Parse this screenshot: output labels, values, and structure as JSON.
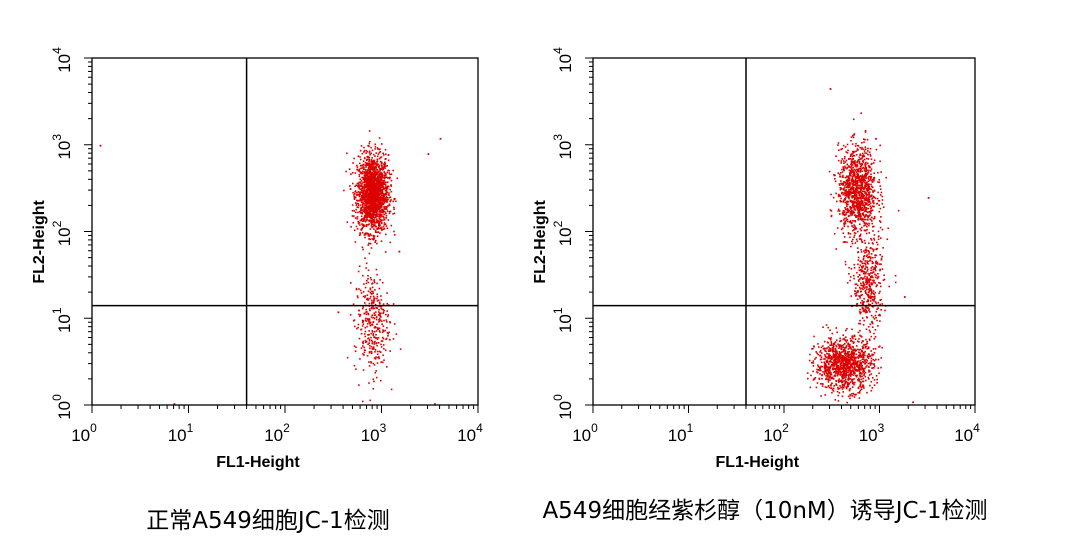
{
  "chart_data": [
    {
      "type": "scatter",
      "title": "正常A549细胞JC-1检测",
      "xlabel": "FL1-Height",
      "ylabel": "FL2-Height",
      "x_scale": "log",
      "y_scale": "log",
      "xlim": [
        1,
        10000
      ],
      "ylim": [
        1,
        10000
      ],
      "x_ticks": [
        {
          "base": "10",
          "exp": "0"
        },
        {
          "base": "10",
          "exp": "1"
        },
        {
          "base": "10",
          "exp": "2"
        },
        {
          "base": "10",
          "exp": "3"
        },
        {
          "base": "10",
          "exp": "4"
        }
      ],
      "y_ticks": [
        {
          "base": "10",
          "exp": "0"
        },
        {
          "base": "10",
          "exp": "1"
        },
        {
          "base": "10",
          "exp": "2"
        },
        {
          "base": "10",
          "exp": "3"
        },
        {
          "base": "10",
          "exp": "4"
        }
      ],
      "gate_lines": {
        "x": 40,
        "y": 14
      },
      "point_color": "#dd0000",
      "clusters": [
        {
          "center": [
            800,
            280
          ],
          "spread_log": [
            0.08,
            0.22
          ],
          "count": 1900
        },
        {
          "center": [
            780,
            9
          ],
          "spread_log": [
            0.09,
            0.3
          ],
          "count": 350
        }
      ],
      "outliers": [
        [
          1.2,
          1000
        ],
        [
          7,
          1.05
        ],
        [
          4000,
          1200
        ],
        [
          3000,
          800
        ],
        [
          1500,
          60
        ],
        [
          350,
          12
        ],
        [
          3500,
          1.05
        ]
      ]
    },
    {
      "type": "scatter",
      "title": "A549细胞经紫杉醇（10nM）诱导JC-1检测",
      "xlabel": "FL1-Height",
      "ylabel": "FL2-Height",
      "x_scale": "log",
      "y_scale": "log",
      "xlim": [
        1,
        10000
      ],
      "ylim": [
        1,
        10000
      ],
      "x_ticks": [
        {
          "base": "10",
          "exp": "0"
        },
        {
          "base": "10",
          "exp": "1"
        },
        {
          "base": "10",
          "exp": "2"
        },
        {
          "base": "10",
          "exp": "3"
        },
        {
          "base": "10",
          "exp": "4"
        }
      ],
      "y_ticks": [
        {
          "base": "10",
          "exp": "0"
        },
        {
          "base": "10",
          "exp": "1"
        },
        {
          "base": "10",
          "exp": "2"
        },
        {
          "base": "10",
          "exp": "3"
        },
        {
          "base": "10",
          "exp": "4"
        }
      ],
      "gate_lines": {
        "x": 40,
        "y": 14
      },
      "point_color": "#dd0000",
      "clusters": [
        {
          "center": [
            580,
            300
          ],
          "spread_log": [
            0.1,
            0.25
          ],
          "count": 1100
        },
        {
          "center": [
            420,
            3
          ],
          "spread_log": [
            0.15,
            0.15
          ],
          "count": 1100
        },
        {
          "center": [
            750,
            25
          ],
          "spread_log": [
            0.08,
            0.3
          ],
          "count": 450
        }
      ],
      "outliers": [
        [
          3200,
          250
        ],
        [
          300,
          4500
        ],
        [
          1800,
          18
        ],
        [
          200,
          2
        ],
        [
          2200,
          1.1
        ],
        [
          900,
          1200
        ]
      ]
    }
  ]
}
